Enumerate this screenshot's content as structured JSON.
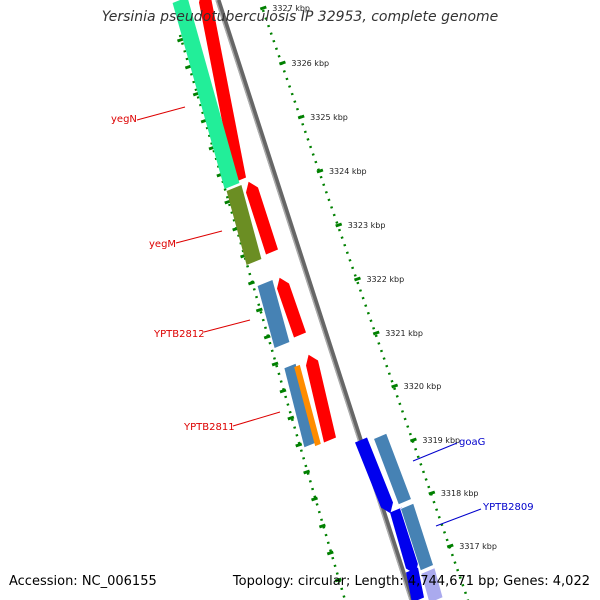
{
  "title": "Yersinia pseudotuberculosis IP 32953, complete genome",
  "footer": {
    "accession": "Accession: NC_006155",
    "summary": "Topology: circular; Length: 4,744,671 bp; Genes: 4,022"
  },
  "colors": {
    "cds_forward": "#ff0000",
    "cds_reverse": "#0000ee",
    "gene_blue": "#4682b4",
    "gene_teal": "#22ee99",
    "gene_olive": "#6b8e23",
    "gene_orange": "#ff8c00",
    "tick_green": "#008000",
    "backbone": "#888888",
    "label_red": "#dd0000",
    "label_blue": "#0000cc"
  },
  "ticks": [
    {
      "label": "3327 kbp"
    },
    {
      "label": "3326 kbp"
    },
    {
      "label": "3325 kbp"
    },
    {
      "label": "3324 kbp"
    },
    {
      "label": "3323 kbp"
    },
    {
      "label": "3322 kbp"
    },
    {
      "label": "3321 kbp"
    },
    {
      "label": "3320 kbp"
    },
    {
      "label": "3319 kbp"
    },
    {
      "label": "3318 kbp"
    },
    {
      "label": "3317 kbp"
    }
  ],
  "gene_labels": [
    {
      "name": "yegN",
      "strand": "forward"
    },
    {
      "name": "yegM",
      "strand": "forward"
    },
    {
      "name": "YPTB2812",
      "strand": "forward"
    },
    {
      "name": "YPTB2811",
      "strand": "forward"
    },
    {
      "name": "goaG",
      "strand": "reverse"
    },
    {
      "name": "YPTB2809",
      "strand": "reverse"
    }
  ]
}
